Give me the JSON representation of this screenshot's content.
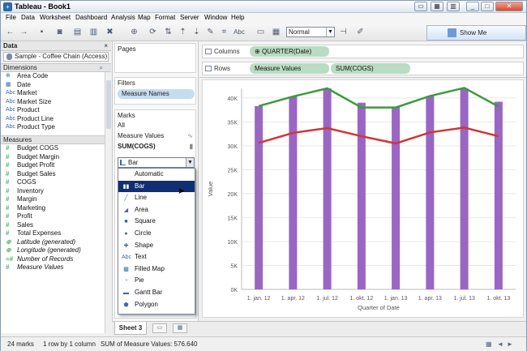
{
  "window": {
    "title": "Tableau - Book1"
  },
  "menu": [
    "File",
    "Data",
    "Worksheet",
    "Dashboard",
    "Analysis",
    "Map",
    "Format",
    "Server",
    "Window",
    "Help"
  ],
  "toolbar": {
    "fit_select": "Normal",
    "show_me": "Show Me"
  },
  "data_pane": {
    "header": "Data",
    "datasource": "Sample - Coffee Chain (Access)",
    "dimensions_header": "Dimensions",
    "dimensions": [
      {
        "icon": "globe",
        "label": "Area Code"
      },
      {
        "icon": "date",
        "label": "Date"
      },
      {
        "icon": "Abc",
        "label": "Market"
      },
      {
        "icon": "Abc",
        "label": "Market Size"
      },
      {
        "icon": "Abc",
        "label": "Product"
      },
      {
        "icon": "Abc",
        "label": "Product Line"
      },
      {
        "icon": "Abc",
        "label": "Product Type"
      }
    ],
    "measures_header": "Measures",
    "measures": [
      {
        "icon": "#",
        "label": "Budget COGS",
        "italic": false
      },
      {
        "icon": "#",
        "label": "Budget Margin",
        "italic": false
      },
      {
        "icon": "#",
        "label": "Budget Profit",
        "italic": false
      },
      {
        "icon": "#",
        "label": "Budget Sales",
        "italic": false
      },
      {
        "icon": "#",
        "label": "COGS",
        "italic": false
      },
      {
        "icon": "#",
        "label": "Inventory",
        "italic": false
      },
      {
        "icon": "#",
        "label": "Margin",
        "italic": false
      },
      {
        "icon": "#",
        "label": "Marketing",
        "italic": false
      },
      {
        "icon": "#",
        "label": "Profit",
        "italic": false
      },
      {
        "icon": "#",
        "label": "Sales",
        "italic": false
      },
      {
        "icon": "#",
        "label": "Total Expenses",
        "italic": false
      },
      {
        "icon": "globe",
        "label": "Latitude (generated)",
        "italic": true
      },
      {
        "icon": "globe",
        "label": "Longitude (generated)",
        "italic": true
      },
      {
        "icon": "=#",
        "label": "Number of Records",
        "italic": true
      },
      {
        "icon": "#",
        "label": "Measure Values",
        "italic": true
      }
    ]
  },
  "cards": {
    "pages": "Pages",
    "filters": "Filters",
    "filter_pill": "Measure Names",
    "marks": "Marks",
    "marks_all": "All",
    "marks_measure_values": "Measure Values",
    "marks_sum_cogs": "SUM(COGS)",
    "mark_type_selected": "Bar",
    "mark_types": [
      {
        "icon": "",
        "label": "Automatic"
      },
      {
        "icon": "bar",
        "label": "Bar"
      },
      {
        "icon": "line",
        "label": "Line"
      },
      {
        "icon": "area",
        "label": "Area"
      },
      {
        "icon": "square",
        "label": "Square"
      },
      {
        "icon": "circle",
        "label": "Circle"
      },
      {
        "icon": "shape",
        "label": "Shape"
      },
      {
        "icon": "Abc",
        "label": "Text"
      },
      {
        "icon": "map",
        "label": "Filled Map"
      },
      {
        "icon": "pie",
        "label": "Pie"
      },
      {
        "icon": "gantt",
        "label": "Gantt Bar"
      },
      {
        "icon": "polygon",
        "label": "Polygon"
      }
    ],
    "selected_index": 1
  },
  "shelves": {
    "columns_label": "Columns",
    "columns_pill": "QUARTER(Date)",
    "rows_label": "Rows",
    "rows_pills": [
      "Measure Values",
      "SUM(COGS)"
    ]
  },
  "tabs": {
    "sheet": "Sheet 3"
  },
  "status": {
    "marks": "24 marks",
    "dims": "1 row by 1 column",
    "sum": "SUM of Measure Values: 576.640"
  },
  "colors": {
    "bar": "#9966c4",
    "green": "#3c9b3c",
    "red": "#d43434",
    "grid": "#e8e8e8"
  },
  "chart_data": {
    "type": "bar",
    "xlabel": "Quarter of Date",
    "ylabel": "Value",
    "ylim": [
      0,
      42000
    ],
    "yticks": [
      0,
      5000,
      10000,
      15000,
      20000,
      25000,
      30000,
      35000,
      40000
    ],
    "ytick_labels": [
      "0K",
      "5K",
      "10K",
      "15K",
      "20K",
      "25K",
      "30K",
      "35K",
      "40K"
    ],
    "categories": [
      "1. jan. 12",
      "1. apr. 12",
      "1. jul. 12",
      "1. okt. 12",
      "1. jan. 13",
      "1. apr. 13",
      "1. jul. 13",
      "1. okt. 13"
    ],
    "bar_values": [
      38300,
      40300,
      42000,
      39000,
      38200,
      40400,
      42000,
      39200
    ],
    "line_series": [
      {
        "color": "green",
        "values": [
          38300,
          40300,
          42000,
          38000,
          38000,
          40400,
          42100,
          38200
        ]
      },
      {
        "color": "red",
        "values": [
          30600,
          32700,
          33700,
          32000,
          30500,
          32800,
          33800,
          32000
        ]
      }
    ]
  }
}
